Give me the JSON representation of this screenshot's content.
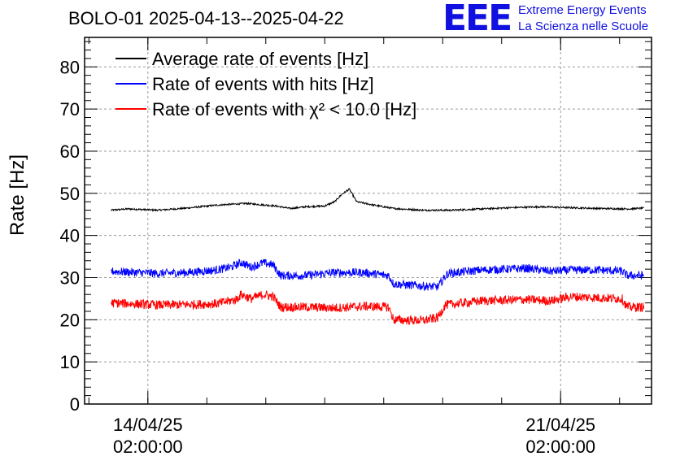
{
  "header": {
    "title": "BOLO-01 2025-04-13--2025-04-22",
    "logo_text": "EEE",
    "logo_line1": "Extreme Energy Events",
    "logo_line2": "La Scienza nelle Scuole"
  },
  "chart_data": {
    "type": "line",
    "ylabel": "Rate [Hz]",
    "ylim": [
      0,
      87
    ],
    "yticks": [
      0,
      10,
      20,
      30,
      40,
      50,
      60,
      70,
      80
    ],
    "xlim": [
      "2025-04-13 00:15",
      "2025-04-22 15:00"
    ],
    "xticks": [
      {
        "t": "2025-04-14 02:00",
        "label1": "14/04/25",
        "label2": "02:00:00"
      },
      {
        "t": "2025-04-21 02:00",
        "label1": "21/04/25",
        "label2": "02:00:00"
      }
    ],
    "grid": true,
    "legend_position": "top-left",
    "series": [
      {
        "name": "Average rate of events [Hz]",
        "color": "#000000",
        "noise": 0.4,
        "points": [
          [
            "2025-04-13 11:00",
            46.0
          ],
          [
            "2025-04-13 18:00",
            46.3
          ],
          [
            "2025-04-14 06:00",
            46.0
          ],
          [
            "2025-04-14 18:00",
            46.5
          ],
          [
            "2025-04-15 06:00",
            47.2
          ],
          [
            "2025-04-15 18:00",
            47.6
          ],
          [
            "2025-04-16 06:00",
            47.0
          ],
          [
            "2025-04-16 12:00",
            46.4
          ],
          [
            "2025-04-16 18:00",
            46.8
          ],
          [
            "2025-04-17 02:00",
            47.0
          ],
          [
            "2025-04-17 06:00",
            48.0
          ],
          [
            "2025-04-17 09:00",
            49.8
          ],
          [
            "2025-04-17 12:00",
            51.0
          ],
          [
            "2025-04-17 14:00",
            49.0
          ],
          [
            "2025-04-17 15:00",
            48.0
          ],
          [
            "2025-04-17 22:00",
            47.2
          ],
          [
            "2025-04-18 06:00",
            46.4
          ],
          [
            "2025-04-18 18:00",
            46.0
          ],
          [
            "2025-04-19 06:00",
            46.0
          ],
          [
            "2025-04-19 18:00",
            46.3
          ],
          [
            "2025-04-20 06:00",
            46.6
          ],
          [
            "2025-04-20 18:00",
            46.8
          ],
          [
            "2025-04-21 06:00",
            46.6
          ],
          [
            "2025-04-21 18:00",
            46.4
          ],
          [
            "2025-04-22 06:00",
            46.3
          ],
          [
            "2025-04-22 12:00",
            46.5
          ]
        ]
      },
      {
        "name": "Rate of events with hits [Hz]",
        "color": "#0000ff",
        "noise": 2.0,
        "points": [
          [
            "2025-04-13 11:00",
            31.5
          ],
          [
            "2025-04-14 06:00",
            31.0
          ],
          [
            "2025-04-14 18:00",
            31.2
          ],
          [
            "2025-04-15 06:00",
            31.8
          ],
          [
            "2025-04-15 12:00",
            32.5
          ],
          [
            "2025-04-15 16:00",
            33.6
          ],
          [
            "2025-04-15 20:00",
            32.5
          ],
          [
            "2025-04-16 01:00",
            33.5
          ],
          [
            "2025-04-16 05:00",
            33.0
          ],
          [
            "2025-04-16 08:00",
            30.5
          ],
          [
            "2025-04-16 18:00",
            30.5
          ],
          [
            "2025-04-17 06:00",
            31.2
          ],
          [
            "2025-04-17 18:00",
            31.2
          ],
          [
            "2025-04-18 04:00",
            30.5
          ],
          [
            "2025-04-18 06:00",
            28.5
          ],
          [
            "2025-04-18 18:00",
            28.0
          ],
          [
            "2025-04-19 00:00",
            27.8
          ],
          [
            "2025-04-19 04:00",
            31.0
          ],
          [
            "2025-04-19 18:00",
            31.8
          ],
          [
            "2025-04-20 12:00",
            32.2
          ],
          [
            "2025-04-20 22:00",
            31.5
          ],
          [
            "2025-04-21 06:00",
            31.8
          ],
          [
            "2025-04-21 18:00",
            31.8
          ],
          [
            "2025-04-22 03:00",
            31.5
          ],
          [
            "2025-04-22 05:00",
            30.5
          ],
          [
            "2025-04-22 12:00",
            30.5
          ]
        ]
      },
      {
        "name": "Rate of events with χ² < 10.0 [Hz]",
        "color": "#ff0000",
        "noise": 2.2,
        "points": [
          [
            "2025-04-13 11:00",
            24.0
          ],
          [
            "2025-04-14 06:00",
            23.5
          ],
          [
            "2025-04-14 18:00",
            23.6
          ],
          [
            "2025-04-15 06:00",
            23.8
          ],
          [
            "2025-04-15 14:00",
            24.8
          ],
          [
            "2025-04-15 16:00",
            26.0
          ],
          [
            "2025-04-15 20:00",
            25.0
          ],
          [
            "2025-04-16 01:00",
            26.0
          ],
          [
            "2025-04-16 05:00",
            25.5
          ],
          [
            "2025-04-16 08:00",
            23.0
          ],
          [
            "2025-04-16 18:00",
            23.0
          ],
          [
            "2025-04-17 06:00",
            22.8
          ],
          [
            "2025-04-17 18:00",
            23.2
          ],
          [
            "2025-04-18 04:00",
            23.0
          ],
          [
            "2025-04-18 06:00",
            20.0
          ],
          [
            "2025-04-18 18:00",
            19.8
          ],
          [
            "2025-04-19 00:00",
            20.5
          ],
          [
            "2025-04-19 03:00",
            23.5
          ],
          [
            "2025-04-19 18:00",
            24.5
          ],
          [
            "2025-04-20 12:00",
            24.8
          ],
          [
            "2025-04-20 22:00",
            24.5
          ],
          [
            "2025-04-21 06:00",
            25.5
          ],
          [
            "2025-04-21 18:00",
            25.2
          ],
          [
            "2025-04-22 03:00",
            25.0
          ],
          [
            "2025-04-22 05:00",
            23.0
          ],
          [
            "2025-04-22 12:00",
            23.0
          ]
        ]
      }
    ]
  }
}
